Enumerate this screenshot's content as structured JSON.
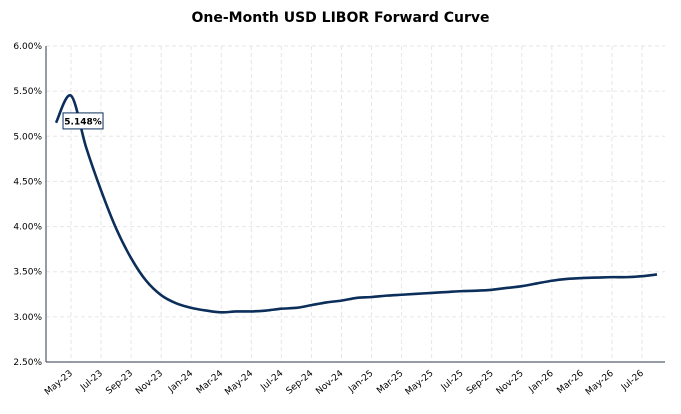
{
  "chart_data": {
    "type": "line",
    "title": "One-Month USD LIBOR Forward Curve",
    "xlabel": "",
    "ylabel": "",
    "ylim": [
      2.5,
      6.0
    ],
    "y_ticks": [
      "2.50%",
      "3.00%",
      "3.50%",
      "4.00%",
      "4.50%",
      "5.00%",
      "5.50%",
      "6.00%"
    ],
    "x_ticks": [
      "May-23",
      "Jul-23",
      "Sep-23",
      "Nov-23",
      "Jan-24",
      "Mar-24",
      "May-24",
      "Jul-24",
      "Sep-24",
      "Nov-24",
      "Jan-25",
      "Mar-25",
      "May-25",
      "Jul-25",
      "Sep-25",
      "Nov-25",
      "Jan-26",
      "Mar-26",
      "May-26",
      "Jul-26"
    ],
    "grid": true,
    "series": [
      {
        "color": "#0b2e5a",
        "x": [
          "Apr-23",
          "May-23",
          "Jun-23",
          "Jul-23",
          "Aug-23",
          "Sep-23",
          "Oct-23",
          "Nov-23",
          "Dec-23",
          "Jan-24",
          "Feb-24",
          "Mar-24",
          "Apr-24",
          "May-24",
          "Jun-24",
          "Jul-24",
          "Aug-24",
          "Sep-24",
          "Oct-24",
          "Nov-24",
          "Dec-24",
          "Jan-25",
          "Feb-25",
          "Mar-25",
          "Apr-25",
          "May-25",
          "Jun-25",
          "Jul-25",
          "Aug-25",
          "Sep-25",
          "Oct-25",
          "Nov-25",
          "Dec-25",
          "Jan-26",
          "Feb-26",
          "Mar-26",
          "Apr-26",
          "May-26",
          "Jun-26",
          "Jul-26",
          "Aug-26"
        ],
        "values": [
          5.15,
          5.45,
          4.88,
          4.4,
          3.98,
          3.65,
          3.4,
          3.24,
          3.15,
          3.1,
          3.07,
          3.05,
          3.06,
          3.06,
          3.07,
          3.09,
          3.1,
          3.13,
          3.16,
          3.18,
          3.21,
          3.22,
          3.235,
          3.245,
          3.255,
          3.265,
          3.275,
          3.285,
          3.29,
          3.3,
          3.32,
          3.34,
          3.37,
          3.4,
          3.42,
          3.43,
          3.435,
          3.44,
          3.44,
          3.45,
          3.47
        ]
      }
    ],
    "annotation": {
      "text": "5.148%",
      "x": "May-23",
      "y": 5.148
    }
  },
  "colors": {
    "line": "#0b2e5a",
    "grid": "#e6e6e6",
    "axis": "#2b3a4a"
  }
}
